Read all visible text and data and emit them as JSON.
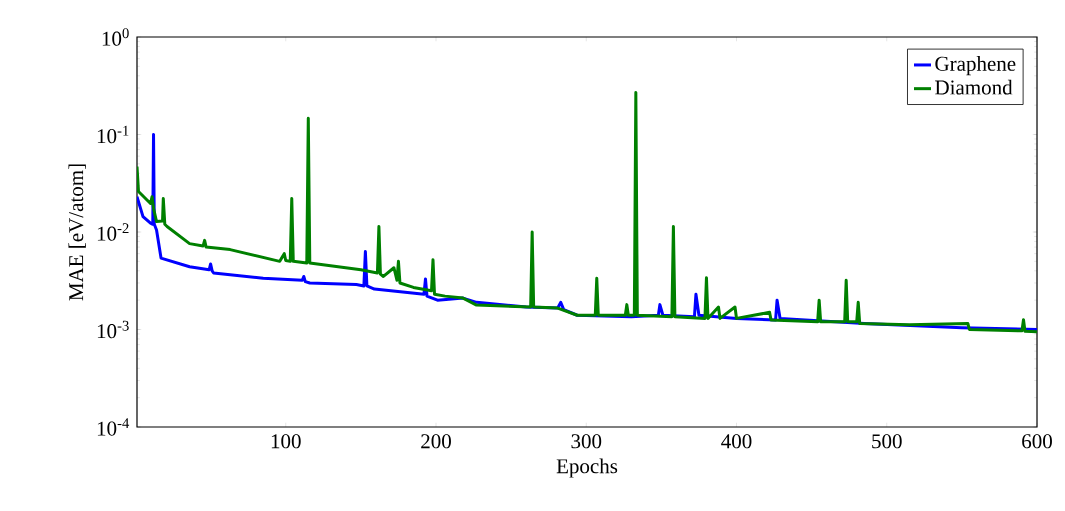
{
  "chart_data": {
    "type": "line",
    "xlabel": "Epochs",
    "ylabel": "MAE [eV/atom]",
    "log": "y",
    "legend": "top right",
    "grid": false,
    "line_style": "solid",
    "marker": "none",
    "xlim": [
      1,
      600
    ],
    "xticks": [
      100,
      200,
      300,
      400,
      500,
      600
    ],
    "ylim": [
      0.0001,
      1
    ],
    "yticks": [
      {
        "value": 0.0001,
        "label": "10$^{-4}$"
      },
      {
        "value": 0.001,
        "label": "10$^{-3}$"
      },
      {
        "value": 0.01,
        "label": "10$^{-2}$"
      },
      {
        "value": 0.1,
        "label": "10$^{-1}$"
      },
      {
        "value": 1,
        "label": "10$^{0}$"
      }
    ],
    "series": [
      {
        "name": "Graphene",
        "color": "#0000ff",
        "x": [
          1,
          5,
          10,
          11.5,
          12,
          12.5,
          14,
          17,
          36,
          49,
          50,
          51,
          52,
          85,
          111,
          112,
          113,
          116,
          147,
          152,
          153,
          154,
          159,
          192,
          193,
          194,
          201,
          218,
          227,
          260,
          281,
          283,
          285,
          294,
          330,
          348,
          349,
          351,
          372,
          373,
          375,
          400,
          426,
          427,
          429,
          485,
          550,
          600
        ],
        "values": [
          0.023,
          0.0144,
          0.0123,
          0.012,
          0.1,
          0.012,
          0.0105,
          0.0054,
          0.0044,
          0.0041,
          0.0047,
          0.004,
          0.0038,
          0.00335,
          0.0032,
          0.0035,
          0.0031,
          0.003,
          0.0029,
          0.0028,
          0.0063,
          0.0028,
          0.0026,
          0.0023,
          0.0033,
          0.0022,
          0.002,
          0.0021,
          0.0019,
          0.0017,
          0.00166,
          0.0019,
          0.0016,
          0.0014,
          0.00135,
          0.0014,
          0.0018,
          0.0014,
          0.00135,
          0.0023,
          0.0014,
          0.0013,
          0.00125,
          0.002,
          0.0013,
          0.00115,
          0.00104,
          0.001
        ]
      },
      {
        "name": "Diamond",
        "color": "#008000",
        "x": [
          1,
          2,
          10,
          11,
          12,
          14,
          18,
          18.5,
          19.5,
          21,
          36,
          45,
          46,
          47,
          63,
          96,
          99,
          100,
          103,
          104,
          105,
          114,
          115,
          116,
          150,
          161,
          162,
          163,
          165,
          172,
          174,
          175,
          176,
          185,
          197,
          198,
          199,
          206,
          218,
          227,
          263,
          264,
          265,
          281,
          294,
          306,
          307,
          308,
          326,
          327,
          328,
          332,
          333,
          334,
          357,
          358,
          359,
          379,
          380,
          381,
          388,
          389,
          399,
          400,
          422,
          423,
          454,
          455,
          456,
          472,
          473,
          474,
          480,
          481,
          482,
          515,
          554,
          555,
          590,
          591,
          592,
          600
        ],
        "values": [
          0.047,
          0.026,
          0.0196,
          0.023,
          0.0175,
          0.0128,
          0.013,
          0.022,
          0.012,
          0.0114,
          0.0076,
          0.0072,
          0.0082,
          0.007,
          0.0066,
          0.005,
          0.006,
          0.0051,
          0.005,
          0.022,
          0.005,
          0.0048,
          0.147,
          0.0048,
          0.0041,
          0.0038,
          0.0114,
          0.0037,
          0.0035,
          0.0043,
          0.0032,
          0.005,
          0.003,
          0.0027,
          0.0025,
          0.0052,
          0.0023,
          0.0022,
          0.0021,
          0.00178,
          0.0017,
          0.01,
          0.0017,
          0.00166,
          0.0014,
          0.0014,
          0.00335,
          0.0014,
          0.0014,
          0.0018,
          0.0014,
          0.0014,
          0.27,
          0.0014,
          0.00135,
          0.0114,
          0.00135,
          0.0013,
          0.0034,
          0.0013,
          0.0017,
          0.0013,
          0.0017,
          0.0013,
          0.0015,
          0.00125,
          0.0012,
          0.002,
          0.0012,
          0.0012,
          0.0032,
          0.0012,
          0.0012,
          0.0019,
          0.00115,
          0.00112,
          0.00115,
          0.001,
          0.00097,
          0.00126,
          0.00096,
          0.00095
        ]
      }
    ]
  }
}
